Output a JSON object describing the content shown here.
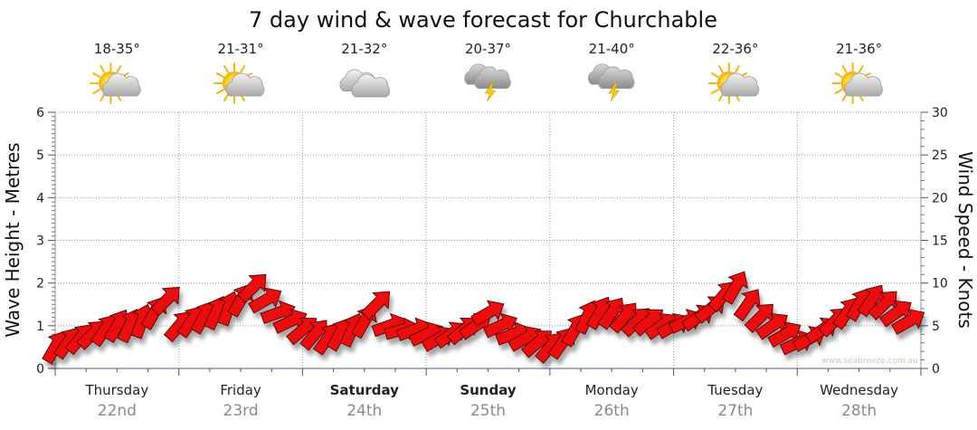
{
  "chart_data": {
    "type": "line",
    "title": "7 day wind & wave forecast for Churchable",
    "ylabel_left": "Wave Height - Metres",
    "ylabel_right": "Wind Speed - Knots",
    "ylim_left": [
      0,
      6
    ],
    "ylim_right": [
      0,
      30
    ],
    "yticks_left": [
      "0",
      "1",
      "2",
      "3",
      "4",
      "5",
      "6"
    ],
    "yticks_right": [
      "0",
      "5",
      "10",
      "15",
      "20",
      "25",
      "30"
    ],
    "grid": true,
    "watermark": "www.seabreeze.com.au",
    "days": [
      {
        "day": "Thursday",
        "date": "22nd",
        "temp": "18-35°",
        "icon": "sun-cloud-icon",
        "bold": false
      },
      {
        "day": "Friday",
        "date": "23rd",
        "temp": "21-31°",
        "icon": "sun-cloud-icon",
        "bold": false
      },
      {
        "day": "Saturday",
        "date": "24th",
        "temp": "21-32°",
        "icon": "cloud-icon",
        "bold": true
      },
      {
        "day": "Sunday",
        "date": "25th",
        "temp": "20-37°",
        "icon": "storm-icon",
        "bold": true
      },
      {
        "day": "Monday",
        "date": "26th",
        "temp": "21-40°",
        "icon": "storm-icon",
        "bold": false
      },
      {
        "day": "Tuesday",
        "date": "27th",
        "temp": "22-36°",
        "icon": "sun-cloud-icon",
        "bold": false
      },
      {
        "day": "Wednesday",
        "date": "28th",
        "temp": "21-36°",
        "icon": "sun-cloud-icon",
        "bold": false
      }
    ],
    "series": [
      {
        "name": "Wind Speed (knots)",
        "axis": "right",
        "color": "#ee1111",
        "x_days": [
          0.0,
          0.1,
          0.2,
          0.3,
          0.4,
          0.5,
          0.6,
          0.7,
          0.8,
          0.9,
          1.0,
          1.1,
          1.2,
          1.3,
          1.4,
          1.5,
          1.6,
          1.7,
          1.8,
          1.9,
          2.0,
          2.1,
          2.2,
          2.3,
          2.4,
          2.5,
          2.6,
          2.7,
          2.8,
          2.9,
          3.0,
          3.1,
          3.2,
          3.3,
          3.4,
          3.5,
          3.6,
          3.7,
          3.8,
          3.9,
          4.0,
          4.1,
          4.2,
          4.3,
          4.4,
          4.5,
          4.6,
          4.7,
          4.8,
          4.9,
          5.0,
          5.1,
          5.2,
          5.3,
          5.4,
          5.5,
          5.6,
          5.7,
          5.8,
          5.9,
          6.0,
          6.1,
          6.2,
          6.3,
          6.4,
          6.5,
          6.6,
          6.7,
          6.8,
          6.9
        ],
        "values": [
          2.5,
          3,
          3.5,
          4,
          4.5,
          5,
          5,
          5.5,
          6.5,
          8,
          5,
          5.5,
          6,
          6.5,
          7,
          8,
          9.5,
          8,
          6.5,
          5.5,
          4.5,
          4,
          3.5,
          4,
          4.5,
          5.5,
          7.5,
          5,
          4.5,
          4.5,
          4,
          3.5,
          4,
          4.5,
          5,
          6.5,
          5,
          4,
          3.5,
          3,
          2.5,
          3,
          4.5,
          6,
          6.5,
          6.5,
          6,
          5.5,
          5.5,
          5,
          5,
          5.5,
          6,
          7,
          8.5,
          9.5,
          7.5,
          6,
          5,
          4,
          3,
          3.5,
          4.5,
          5.5,
          6.5,
          7.5,
          8,
          7.5,
          6.5,
          5.5
        ]
      }
    ],
    "wind_direction_deg": [
      210,
      215,
      220,
      225,
      215,
      210,
      205,
      200,
      210,
      225,
      220,
      215,
      210,
      205,
      200,
      210,
      225,
      240,
      250,
      245,
      230,
      220,
      215,
      210,
      205,
      210,
      225,
      250,
      255,
      250,
      245,
      240,
      235,
      230,
      235,
      240,
      245,
      250,
      240,
      230,
      220,
      215,
      210,
      205,
      210,
      215,
      220,
      225,
      230,
      235,
      240,
      245,
      235,
      230,
      220,
      210,
      215,
      225,
      235,
      240,
      245,
      240,
      235,
      225,
      215,
      210,
      215,
      225,
      235,
      240
    ]
  }
}
